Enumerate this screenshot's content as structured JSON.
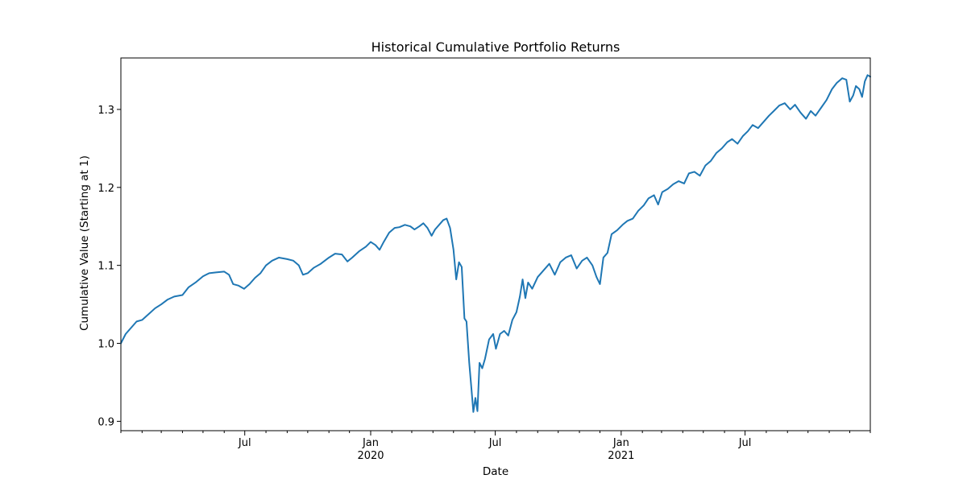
{
  "chart_data": {
    "type": "line",
    "title": "Historical Cumulative Portfolio Returns",
    "xlabel": "Date",
    "ylabel": "Cumulative Value (Starting at 1)",
    "xlim": [
      "2019-01-01",
      "2021-12-31"
    ],
    "ylim": [
      0.888,
      1.366
    ],
    "y_ticks": [
      {
        "value": 0.9,
        "label": "0.9"
      },
      {
        "value": 1.0,
        "label": "1.0"
      },
      {
        "value": 1.1,
        "label": "1.1"
      },
      {
        "value": 1.2,
        "label": "1.2"
      },
      {
        "value": 1.3,
        "label": "1.3"
      }
    ],
    "x_major_ticks": [
      {
        "date": "2019-07-01",
        "label": "Jul",
        "sublabel": ""
      },
      {
        "date": "2020-01-01",
        "label": "Jan",
        "sublabel": "2020"
      },
      {
        "date": "2020-07-01",
        "label": "Jul",
        "sublabel": ""
      },
      {
        "date": "2021-01-01",
        "label": "Jan",
        "sublabel": "2021"
      },
      {
        "date": "2021-07-01",
        "label": "Jul",
        "sublabel": ""
      }
    ],
    "x_minor_ticks": [
      "2019-01-01",
      "2019-02-01",
      "2019-03-01",
      "2019-04-01",
      "2019-05-01",
      "2019-06-01",
      "2019-08-01",
      "2019-09-01",
      "2019-10-01",
      "2019-11-01",
      "2019-12-01",
      "2020-02-01",
      "2020-03-01",
      "2020-04-01",
      "2020-05-01",
      "2020-06-01",
      "2020-08-01",
      "2020-09-01",
      "2020-10-01",
      "2020-11-01",
      "2020-12-01",
      "2021-02-01",
      "2021-03-01",
      "2021-04-01",
      "2021-05-01",
      "2021-06-01",
      "2021-08-01",
      "2021-09-01",
      "2021-10-01",
      "2021-11-01",
      "2021-12-01",
      "2021-12-31"
    ],
    "grid": false,
    "series": [
      {
        "color": "#1f77b4",
        "points": [
          [
            "2019-01-01",
            1.0
          ],
          [
            "2019-01-08",
            1.012
          ],
          [
            "2019-01-16",
            1.02
          ],
          [
            "2019-01-24",
            1.028
          ],
          [
            "2019-02-01",
            1.03
          ],
          [
            "2019-02-10",
            1.037
          ],
          [
            "2019-02-20",
            1.045
          ],
          [
            "2019-03-01",
            1.05
          ],
          [
            "2019-03-10",
            1.056
          ],
          [
            "2019-03-20",
            1.06
          ],
          [
            "2019-04-01",
            1.062
          ],
          [
            "2019-04-10",
            1.072
          ],
          [
            "2019-04-20",
            1.078
          ],
          [
            "2019-05-01",
            1.086
          ],
          [
            "2019-05-10",
            1.09
          ],
          [
            "2019-05-20",
            1.091
          ],
          [
            "2019-06-01",
            1.092
          ],
          [
            "2019-06-08",
            1.088
          ],
          [
            "2019-06-14",
            1.076
          ],
          [
            "2019-06-22",
            1.074
          ],
          [
            "2019-06-30",
            1.07
          ],
          [
            "2019-07-08",
            1.076
          ],
          [
            "2019-07-16",
            1.084
          ],
          [
            "2019-07-24",
            1.09
          ],
          [
            "2019-08-01",
            1.1
          ],
          [
            "2019-08-10",
            1.106
          ],
          [
            "2019-08-20",
            1.11
          ],
          [
            "2019-09-01",
            1.108
          ],
          [
            "2019-09-10",
            1.106
          ],
          [
            "2019-09-18",
            1.1
          ],
          [
            "2019-09-24",
            1.088
          ],
          [
            "2019-10-01",
            1.09
          ],
          [
            "2019-10-10",
            1.097
          ],
          [
            "2019-10-20",
            1.102
          ],
          [
            "2019-11-01",
            1.11
          ],
          [
            "2019-11-10",
            1.115
          ],
          [
            "2019-11-20",
            1.114
          ],
          [
            "2019-11-28",
            1.105
          ],
          [
            "2019-12-05",
            1.11
          ],
          [
            "2019-12-15",
            1.118
          ],
          [
            "2019-12-25",
            1.124
          ],
          [
            "2020-01-01",
            1.13
          ],
          [
            "2020-01-08",
            1.126
          ],
          [
            "2020-01-14",
            1.12
          ],
          [
            "2020-01-20",
            1.13
          ],
          [
            "2020-01-28",
            1.142
          ],
          [
            "2020-02-05",
            1.148
          ],
          [
            "2020-02-12",
            1.149
          ],
          [
            "2020-02-20",
            1.152
          ],
          [
            "2020-02-28",
            1.15
          ],
          [
            "2020-03-05",
            1.146
          ],
          [
            "2020-03-12",
            1.15
          ],
          [
            "2020-03-18",
            1.154
          ],
          [
            "2020-03-24",
            1.148
          ],
          [
            "2020-03-30",
            1.138
          ],
          [
            "2020-04-04",
            1.146
          ],
          [
            "2020-04-10",
            1.152
          ],
          [
            "2020-04-16",
            1.158
          ],
          [
            "2020-04-21",
            1.16
          ],
          [
            "2020-04-26",
            1.148
          ],
          [
            "2020-05-01",
            1.12
          ],
          [
            "2020-05-05",
            1.082
          ],
          [
            "2020-05-09",
            1.104
          ],
          [
            "2020-05-13",
            1.098
          ],
          [
            "2020-05-17",
            1.032
          ],
          [
            "2020-05-20",
            1.028
          ],
          [
            "2020-05-24",
            0.975
          ],
          [
            "2020-05-27",
            0.944
          ],
          [
            "2020-05-30",
            0.912
          ],
          [
            "2020-06-02",
            0.93
          ],
          [
            "2020-06-05",
            0.913
          ],
          [
            "2020-06-08",
            0.975
          ],
          [
            "2020-06-12",
            0.968
          ],
          [
            "2020-06-16",
            0.98
          ],
          [
            "2020-06-22",
            1.005
          ],
          [
            "2020-06-28",
            1.012
          ],
          [
            "2020-07-02",
            0.993
          ],
          [
            "2020-07-08",
            1.012
          ],
          [
            "2020-07-14",
            1.016
          ],
          [
            "2020-07-20",
            1.01
          ],
          [
            "2020-07-26",
            1.03
          ],
          [
            "2020-08-01",
            1.04
          ],
          [
            "2020-08-06",
            1.06
          ],
          [
            "2020-08-10",
            1.082
          ],
          [
            "2020-08-14",
            1.058
          ],
          [
            "2020-08-18",
            1.078
          ],
          [
            "2020-08-24",
            1.07
          ],
          [
            "2020-09-01",
            1.085
          ],
          [
            "2020-09-10",
            1.094
          ],
          [
            "2020-09-18",
            1.102
          ],
          [
            "2020-09-26",
            1.088
          ],
          [
            "2020-10-04",
            1.104
          ],
          [
            "2020-10-12",
            1.11
          ],
          [
            "2020-10-20",
            1.113
          ],
          [
            "2020-10-28",
            1.096
          ],
          [
            "2020-11-05",
            1.106
          ],
          [
            "2020-11-12",
            1.11
          ],
          [
            "2020-11-20",
            1.1
          ],
          [
            "2020-11-26",
            1.085
          ],
          [
            "2020-12-01",
            1.076
          ],
          [
            "2020-12-06",
            1.11
          ],
          [
            "2020-12-12",
            1.116
          ],
          [
            "2020-12-18",
            1.14
          ],
          [
            "2020-12-26",
            1.145
          ],
          [
            "2021-01-03",
            1.152
          ],
          [
            "2021-01-10",
            1.157
          ],
          [
            "2021-01-18",
            1.16
          ],
          [
            "2021-01-26",
            1.17
          ],
          [
            "2021-02-03",
            1.177
          ],
          [
            "2021-02-10",
            1.186
          ],
          [
            "2021-02-18",
            1.19
          ],
          [
            "2021-02-24",
            1.178
          ],
          [
            "2021-03-02",
            1.194
          ],
          [
            "2021-03-10",
            1.198
          ],
          [
            "2021-03-18",
            1.204
          ],
          [
            "2021-03-26",
            1.208
          ],
          [
            "2021-04-03",
            1.205
          ],
          [
            "2021-04-10",
            1.218
          ],
          [
            "2021-04-18",
            1.22
          ],
          [
            "2021-04-26",
            1.215
          ],
          [
            "2021-05-04",
            1.228
          ],
          [
            "2021-05-12",
            1.234
          ],
          [
            "2021-05-20",
            1.244
          ],
          [
            "2021-05-28",
            1.25
          ],
          [
            "2021-06-05",
            1.258
          ],
          [
            "2021-06-12",
            1.262
          ],
          [
            "2021-06-20",
            1.256
          ],
          [
            "2021-06-28",
            1.266
          ],
          [
            "2021-07-05",
            1.272
          ],
          [
            "2021-07-12",
            1.28
          ],
          [
            "2021-07-20",
            1.276
          ],
          [
            "2021-07-28",
            1.284
          ],
          [
            "2021-08-05",
            1.292
          ],
          [
            "2021-08-12",
            1.298
          ],
          [
            "2021-08-20",
            1.305
          ],
          [
            "2021-08-28",
            1.308
          ],
          [
            "2021-09-05",
            1.3
          ],
          [
            "2021-09-12",
            1.306
          ],
          [
            "2021-09-20",
            1.296
          ],
          [
            "2021-09-28",
            1.288
          ],
          [
            "2021-10-05",
            1.298
          ],
          [
            "2021-10-12",
            1.292
          ],
          [
            "2021-10-20",
            1.302
          ],
          [
            "2021-10-28",
            1.312
          ],
          [
            "2021-11-05",
            1.326
          ],
          [
            "2021-11-12",
            1.334
          ],
          [
            "2021-11-20",
            1.34
          ],
          [
            "2021-11-26",
            1.338
          ],
          [
            "2021-12-01",
            1.31
          ],
          [
            "2021-12-06",
            1.318
          ],
          [
            "2021-12-10",
            1.33
          ],
          [
            "2021-12-15",
            1.326
          ],
          [
            "2021-12-19",
            1.316
          ],
          [
            "2021-12-23",
            1.336
          ],
          [
            "2021-12-27",
            1.344
          ],
          [
            "2021-12-31",
            1.342
          ]
        ]
      }
    ]
  }
}
